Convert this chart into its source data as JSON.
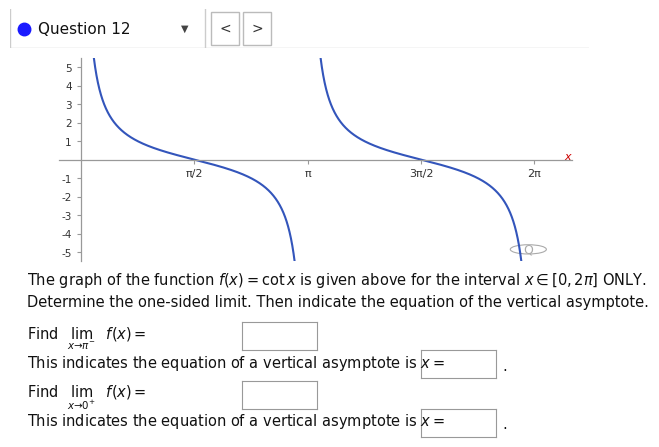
{
  "title_bar": "Question 12",
  "graph_xlim": [
    -0.3,
    6.8
  ],
  "graph_ylim": [
    -5.5,
    5.5
  ],
  "yticks": [
    -5,
    -4,
    -3,
    -2,
    -1,
    1,
    2,
    3,
    4,
    5
  ],
  "xtick_labels": [
    "π/2",
    "π",
    "3π/2",
    "2π"
  ],
  "xtick_values": [
    1.5707963,
    3.1415926,
    4.7123889,
    6.2831853
  ],
  "curve_color": "#3355bb",
  "axis_color": "#999999",
  "text1": "The graph of the function $f(x) = \\cot x$ is given above for the interval $x \\in [0, 2\\pi]$ ONLY.",
  "text2": "Determine the one-sided limit. Then indicate the equation of the vertical asymptote.",
  "background_color": "#ffffff",
  "bar_bg": "#f5f5f5",
  "bar_border": "#cccccc",
  "bullet_color": "#1a1aff",
  "fontsize_text": 10.5,
  "fontsize_bar": 11
}
